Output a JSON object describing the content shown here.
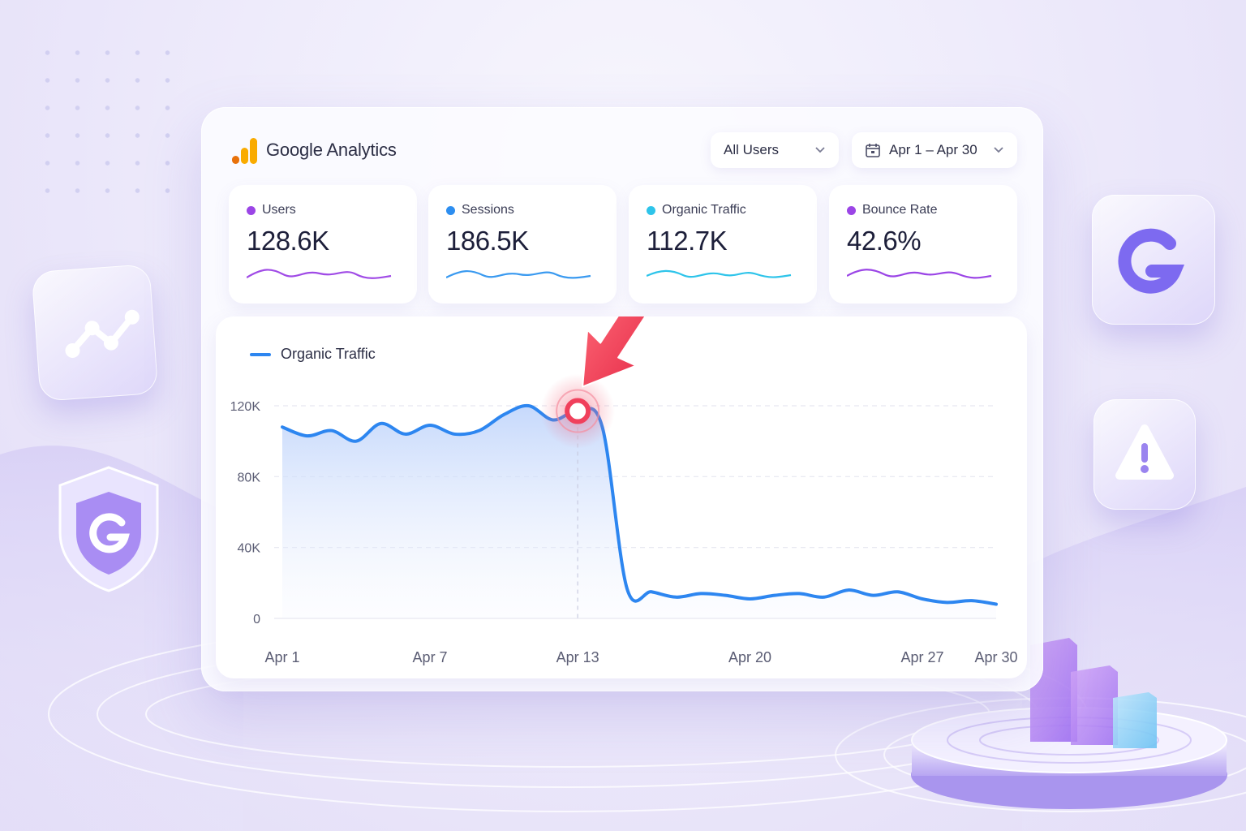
{
  "brand": {
    "name": "Google Analytics"
  },
  "filters": {
    "segment": "All Users",
    "date_range": "Apr 1 – Apr 30"
  },
  "metrics": [
    {
      "label": "Users",
      "value": "128.6K",
      "color": "#9b45e6"
    },
    {
      "label": "Sessions",
      "value": "186.5K",
      "color": "#2d8ef0"
    },
    {
      "label": "Organic Traffic",
      "value": "112.7K",
      "color": "#2ec4ea"
    },
    {
      "label": "Bounce Rate",
      "value": "42.6%",
      "color": "#9b45e6"
    }
  ],
  "colors": {
    "line": "#2d86f0",
    "highlight": "#f0405c",
    "accent": "#8a6cf0"
  },
  "chart_data": {
    "type": "area",
    "title": "",
    "legend": [
      "Organic Traffic"
    ],
    "legend_position": "top-left",
    "xlabel": "",
    "ylabel": "",
    "ylim": [
      0,
      120000
    ],
    "xlim": [
      1,
      30
    ],
    "y_ticks": [
      0,
      40000,
      80000,
      120000
    ],
    "y_tick_labels": [
      "0",
      "40K",
      "80K",
      "120K"
    ],
    "x_ticks": [
      1,
      7,
      13,
      20,
      27,
      30
    ],
    "x_tick_labels": [
      "Apr 1",
      "Apr 7",
      "Apr 13",
      "Apr 20",
      "Apr 27",
      "Apr 30"
    ],
    "grid": true,
    "highlight_x": 13,
    "series": [
      {
        "name": "Organic Traffic",
        "x": [
          1,
          2,
          3,
          4,
          5,
          6,
          7,
          8,
          9,
          10,
          11,
          12,
          13,
          14,
          15,
          16,
          17,
          18,
          19,
          20,
          21,
          22,
          23,
          24,
          25,
          26,
          27,
          28,
          29,
          30
        ],
        "y": [
          108000,
          103000,
          106000,
          100000,
          110000,
          104000,
          109000,
          104000,
          106000,
          115000,
          120000,
          112000,
          117000,
          108000,
          17000,
          15000,
          12000,
          14000,
          13000,
          11000,
          13000,
          14000,
          12000,
          16000,
          13000,
          15000,
          11000,
          9000,
          10000,
          8000
        ]
      }
    ]
  }
}
